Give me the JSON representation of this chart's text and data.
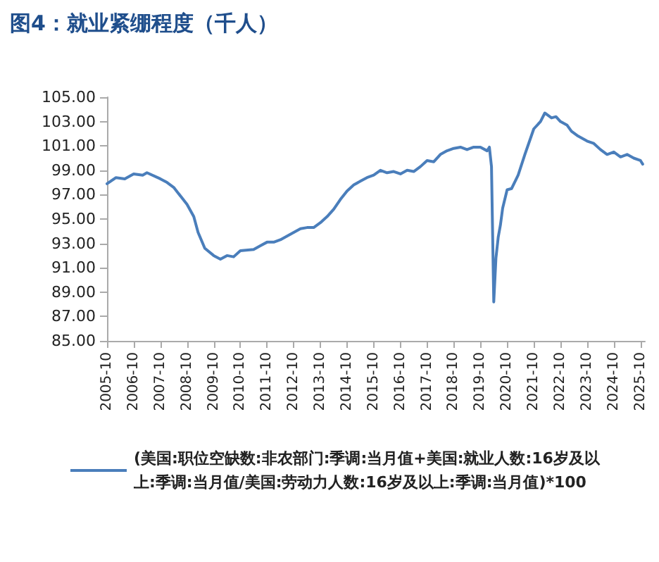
{
  "chart_data": {
    "type": "line",
    "title": "图4：就业紧绷程度（千人）",
    "x": [
      "2005-10",
      "2006-02",
      "2006-06",
      "2006-10",
      "2007-02",
      "2007-04",
      "2007-10",
      "2008-01",
      "2008-04",
      "2008-10",
      "2009-01",
      "2009-03",
      "2009-06",
      "2009-10",
      "2010-01",
      "2010-04",
      "2010-07",
      "2010-10",
      "2011-04",
      "2011-07",
      "2011-10",
      "2012-01",
      "2012-04",
      "2012-10",
      "2013-01",
      "2013-04",
      "2013-07",
      "2013-10",
      "2014-01",
      "2014-04",
      "2014-07",
      "2014-10",
      "2015-01",
      "2015-04",
      "2015-07",
      "2015-10",
      "2016-01",
      "2016-04",
      "2016-07",
      "2016-10",
      "2017-01",
      "2017-04",
      "2017-07",
      "2017-10",
      "2018-01",
      "2018-04",
      "2018-07",
      "2018-10",
      "2019-01",
      "2019-04",
      "2019-07",
      "2019-10",
      "2020-01",
      "2020-02",
      "2020-03",
      "2020-04",
      "2020-05",
      "2020-06",
      "2020-07",
      "2020-08",
      "2020-10",
      "2020-12",
      "2021-03",
      "2021-06",
      "2021-10",
      "2022-01",
      "2022-03",
      "2022-06",
      "2022-08",
      "2022-10",
      "2023-01",
      "2023-03",
      "2023-06",
      "2023-10",
      "2024-01",
      "2024-04",
      "2024-07",
      "2024-10",
      "2025-01",
      "2025-04",
      "2025-07",
      "2025-10",
      "2025-11"
    ],
    "series": [
      {
        "name": "(美国:职位空缺数:非农部门:季调:当月值+美国:就业人数:16岁及以上:季调:当月值/美国:劳动力人数:16岁及以上:季调:当月值)*100",
        "color": "#4a7ebb",
        "values": [
          97.9,
          98.4,
          98.3,
          98.7,
          98.6,
          98.8,
          98.3,
          98.0,
          97.6,
          96.2,
          95.2,
          93.9,
          92.6,
          92.0,
          91.7,
          92.0,
          91.9,
          92.4,
          92.5,
          92.8,
          93.1,
          93.1,
          93.3,
          93.9,
          94.2,
          94.3,
          94.3,
          94.7,
          95.2,
          95.8,
          96.6,
          97.3,
          97.8,
          98.1,
          98.4,
          98.6,
          99.0,
          98.8,
          98.9,
          98.7,
          99.0,
          98.9,
          99.3,
          99.8,
          99.7,
          100.3,
          100.6,
          100.8,
          100.9,
          100.7,
          100.9,
          100.9,
          100.6,
          100.9,
          99.3,
          88.2,
          91.8,
          93.5,
          94.5,
          95.9,
          97.4,
          97.5,
          98.6,
          100.3,
          102.4,
          103.0,
          103.7,
          103.3,
          103.4,
          103.0,
          102.7,
          102.2,
          101.8,
          101.4,
          101.2,
          100.7,
          100.3,
          100.5,
          100.1,
          100.3,
          100.0,
          99.8,
          99.5
        ]
      }
    ],
    "xlim": [
      "2005-10",
      "2025-12"
    ],
    "xticks": [
      "2005-10",
      "2006-10",
      "2007-10",
      "2008-10",
      "2009-10",
      "2010-10",
      "2011-10",
      "2012-10",
      "2013-10",
      "2014-10",
      "2015-10",
      "2016-10",
      "2017-10",
      "2018-10",
      "2019-10",
      "2020-10",
      "2021-10",
      "2022-10",
      "2023-10",
      "2024-10",
      "2025-10"
    ],
    "ylim": [
      85,
      105
    ],
    "yticks": [
      {
        "value": 85,
        "label": "85.00"
      },
      {
        "value": 87,
        "label": "87.00"
      },
      {
        "value": 89,
        "label": "89.00"
      },
      {
        "value": 91,
        "label": "91.00"
      },
      {
        "value": 93,
        "label": "93.00"
      },
      {
        "value": 95,
        "label": "95.00"
      },
      {
        "value": 97,
        "label": "97.00"
      },
      {
        "value": 99,
        "label": "99.00"
      },
      {
        "value": 101,
        "label": "101.00"
      },
      {
        "value": 103,
        "label": "103.00"
      },
      {
        "value": 105,
        "label": "105.00"
      }
    ],
    "grid": false,
    "legend": "bottom",
    "marker": "none",
    "line_style": "solid"
  }
}
